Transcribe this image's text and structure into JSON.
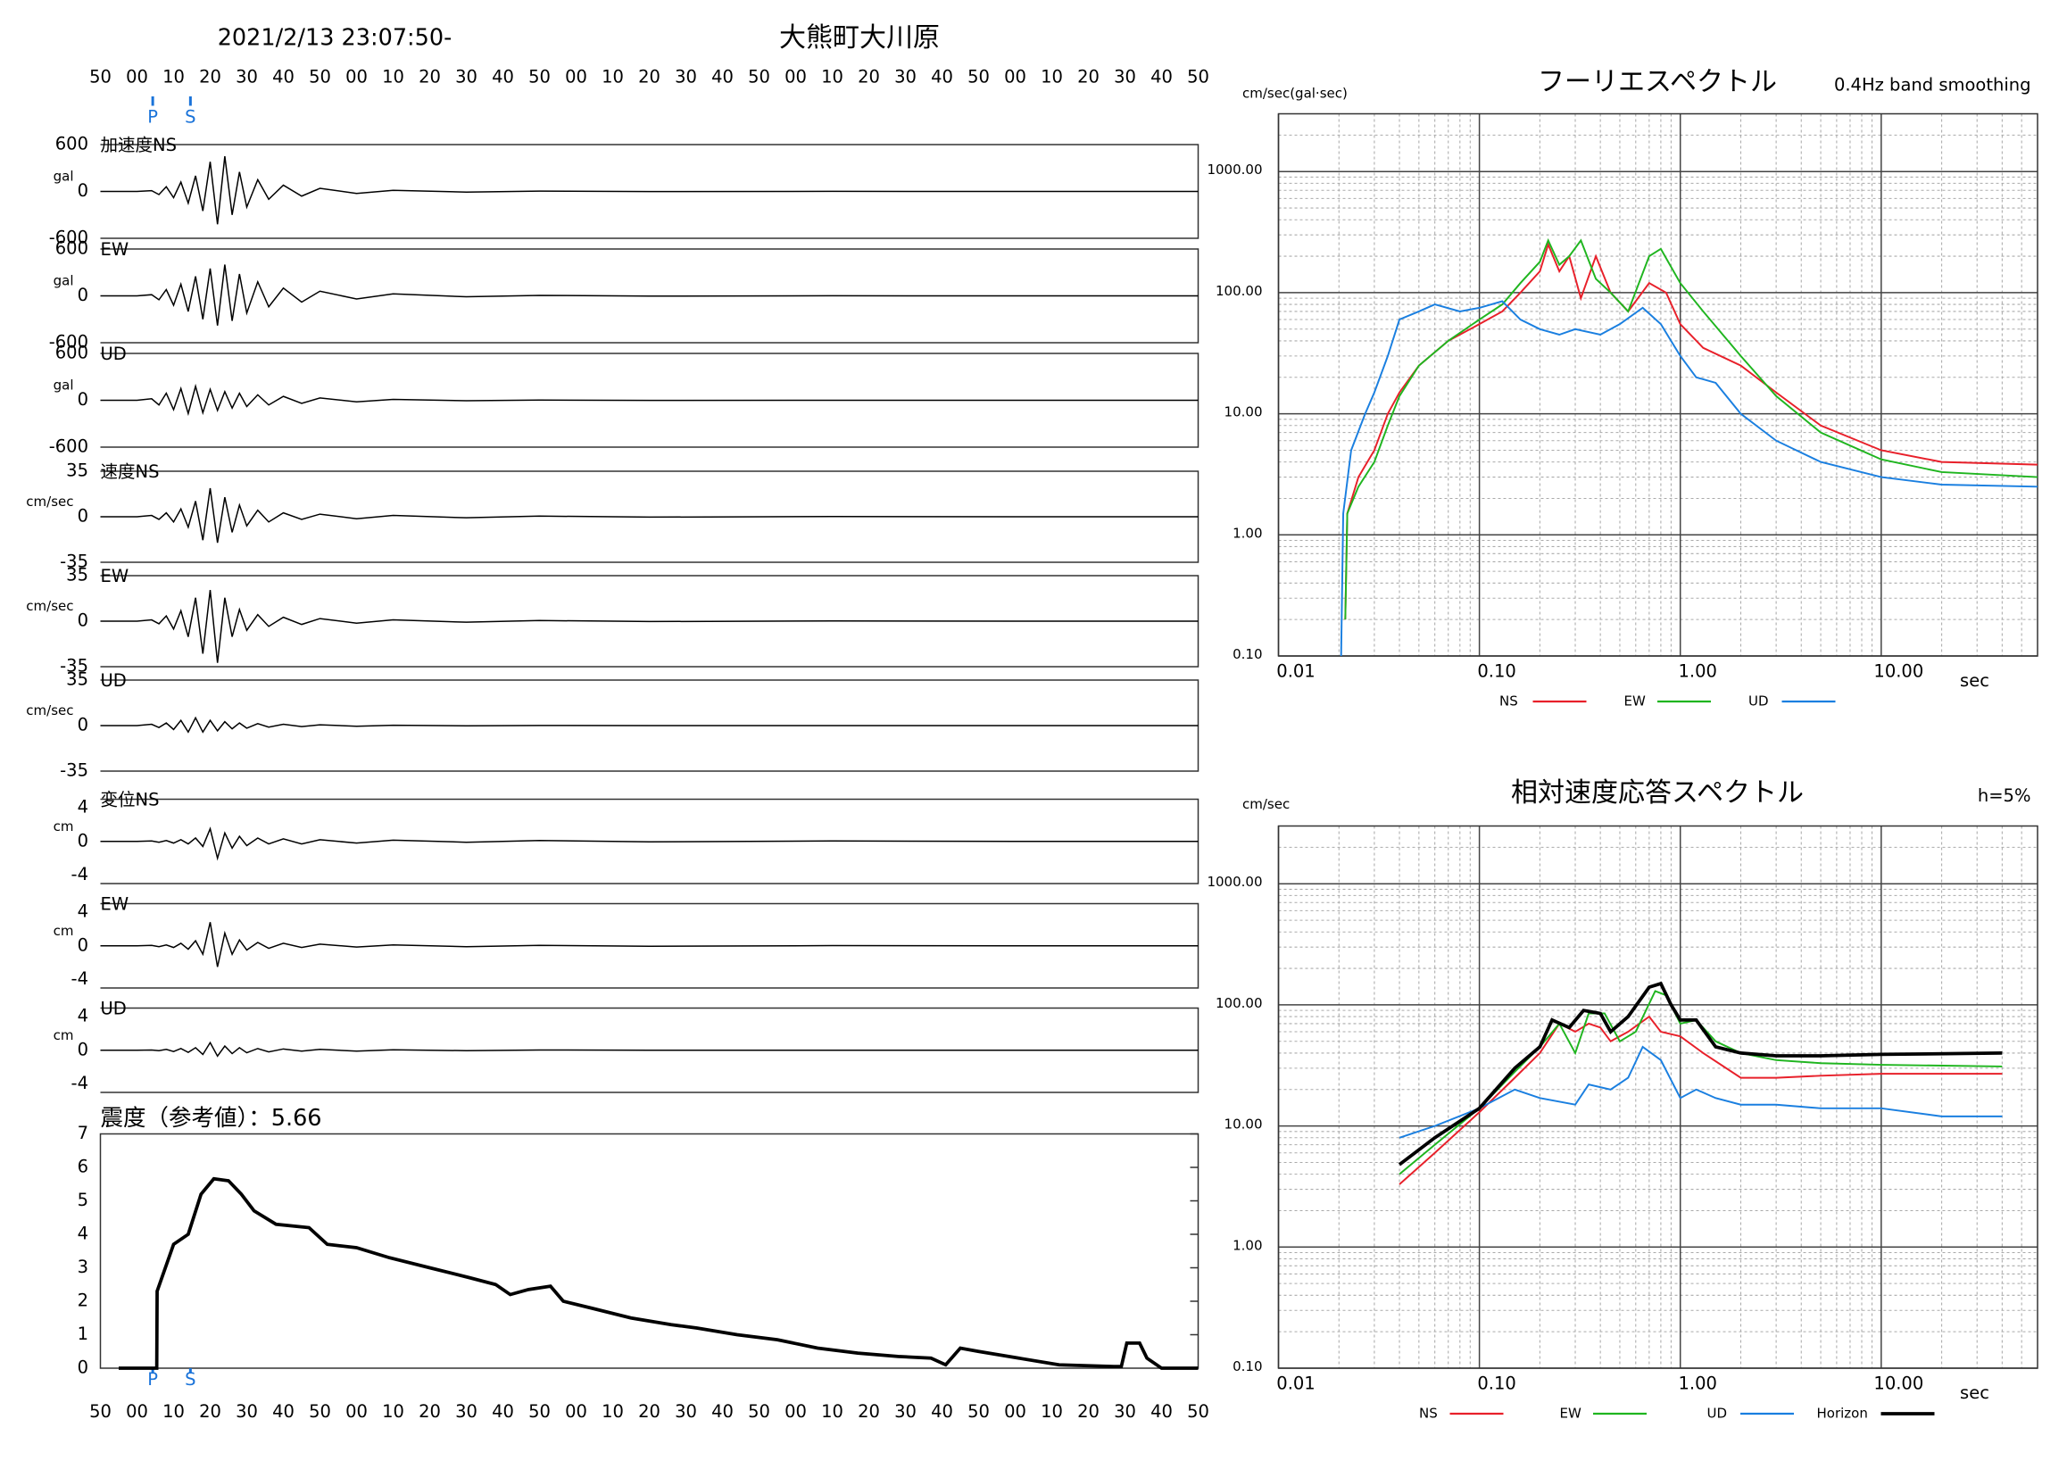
{
  "header": {
    "start_time": "2021/2/13 23:07:50-",
    "station": "大熊町大川原"
  },
  "chart_data": [
    {
      "type": "waveform",
      "x": [
        0,
        10,
        14,
        16,
        18,
        20,
        22,
        24,
        26,
        28,
        30,
        32,
        34,
        36,
        38,
        40,
        43,
        46,
        50,
        55,
        60,
        70,
        80,
        100,
        120,
        150,
        200,
        250,
        300
      ],
      "xlim": [
        0,
        300
      ],
      "xticks": [
        {
          "value": 0,
          "label": "50"
        },
        {
          "value": 10,
          "label": "00"
        },
        {
          "value": 20,
          "label": "10"
        },
        {
          "value": 30,
          "label": "20"
        },
        {
          "value": 40,
          "label": "30"
        },
        {
          "value": 50,
          "label": "40"
        },
        {
          "value": 60,
          "label": "50"
        },
        {
          "value": 70,
          "label": "00"
        },
        {
          "value": 80,
          "label": "10"
        },
        {
          "value": 90,
          "label": "20"
        },
        {
          "value": 100,
          "label": "30"
        },
        {
          "value": 110,
          "label": "40"
        },
        {
          "value": 120,
          "label": "50"
        },
        {
          "value": 130,
          "label": "00"
        },
        {
          "value": 140,
          "label": "10"
        },
        {
          "value": 150,
          "label": "20"
        },
        {
          "value": 160,
          "label": "30"
        },
        {
          "value": 170,
          "label": "40"
        },
        {
          "value": 180,
          "label": "50"
        },
        {
          "value": 190,
          "label": "00"
        },
        {
          "value": 200,
          "label": "10"
        },
        {
          "value": 210,
          "label": "20"
        },
        {
          "value": 220,
          "label": "30"
        },
        {
          "value": 230,
          "label": "40"
        },
        {
          "value": 240,
          "label": "50"
        },
        {
          "value": 250,
          "label": "00"
        },
        {
          "value": 260,
          "label": "10"
        },
        {
          "value": 270,
          "label": "20"
        },
        {
          "value": 280,
          "label": "30"
        },
        {
          "value": 290,
          "label": "40"
        },
        {
          "value": 300,
          "label": "50"
        }
      ],
      "phases": [
        {
          "label": "P",
          "value": 14.3
        },
        {
          "label": "S",
          "value": 24.6
        }
      ],
      "color": "#000000",
      "panels": [
        {
          "label": "加速度NS",
          "unit": "gal",
          "ylim": [
            -600,
            600
          ],
          "yticks": [
            -600,
            0,
            600
          ],
          "values": [
            0,
            0,
            10,
            -40,
            60,
            -80,
            120,
            -150,
            200,
            -250,
            380,
            -420,
            450,
            -300,
            250,
            -200,
            150,
            -100,
            80,
            -60,
            40,
            -25,
            15,
            -8,
            5,
            -2,
            1,
            0,
            0
          ]
        },
        {
          "label": "EW",
          "unit": "gal",
          "ylim": [
            -600,
            600
          ],
          "yticks": [
            -600,
            0,
            600
          ],
          "values": [
            0,
            0,
            15,
            -50,
            80,
            -120,
            150,
            -200,
            250,
            -300,
            350,
            -380,
            400,
            -320,
            280,
            -220,
            180,
            -140,
            100,
            -80,
            60,
            -40,
            25,
            -12,
            6,
            -3,
            1,
            0,
            0
          ]
        },
        {
          "label": "UD",
          "unit": "gal",
          "ylim": [
            -600,
            600
          ],
          "yticks": [
            -600,
            0,
            600
          ],
          "values": [
            0,
            0,
            20,
            -60,
            90,
            -120,
            150,
            -170,
            180,
            -160,
            140,
            -130,
            110,
            -100,
            90,
            -80,
            70,
            -60,
            50,
            -40,
            30,
            -20,
            12,
            -6,
            3,
            -1,
            0,
            0,
            0
          ]
        },
        {
          "label": "速度NS",
          "unit": "cm/sec",
          "ylim": [
            -35,
            35
          ],
          "yticks": [
            -35,
            0,
            35
          ],
          "values": [
            0,
            0,
            1,
            -2,
            3,
            -4,
            6,
            -8,
            12,
            -18,
            22,
            -20,
            15,
            -12,
            9,
            -7,
            5,
            -4,
            3,
            -2,
            2,
            -1.5,
            1,
            -0.8,
            0.5,
            -0.3,
            0.2,
            0,
            0
          ]
        },
        {
          "label": "EW",
          "unit": "cm/sec",
          "ylim": [
            -35,
            35
          ],
          "yticks": [
            -35,
            0,
            35
          ],
          "values": [
            0,
            0,
            1,
            -2,
            4,
            -6,
            8,
            -12,
            18,
            -25,
            24,
            -32,
            18,
            -12,
            9,
            -7,
            5,
            -4,
            3,
            -2.5,
            2,
            -1.5,
            1,
            -0.8,
            0.5,
            -0.3,
            0.2,
            0,
            0
          ]
        },
        {
          "label": "UD",
          "unit": "cm/sec",
          "ylim": [
            -35,
            35
          ],
          "yticks": [
            -35,
            0,
            35
          ],
          "values": [
            0,
            0,
            1,
            -1.5,
            2,
            -3,
            4,
            -5,
            6,
            -5,
            4,
            -4,
            3,
            -2.5,
            2,
            -2,
            1.5,
            -1.2,
            1,
            -0.8,
            0.6,
            -0.5,
            0.3,
            -0.2,
            0.1,
            0,
            0,
            0,
            0
          ]
        },
        {
          "label": "変位NS",
          "unit": "cm",
          "ylim": [
            -5,
            5
          ],
          "yticks": [
            -4,
            0,
            4
          ],
          "values": [
            0,
            0,
            0.05,
            -0.1,
            0.1,
            -0.2,
            0.2,
            -0.3,
            0.4,
            -0.6,
            1.5,
            -2.0,
            1.0,
            -0.8,
            0.6,
            -0.5,
            0.4,
            -0.3,
            0.3,
            -0.3,
            0.2,
            -0.2,
            0.15,
            -0.1,
            0.1,
            -0.05,
            0.05,
            0,
            0
          ]
        },
        {
          "label": "EW",
          "unit": "cm",
          "ylim": [
            -5,
            5
          ],
          "yticks": [
            -4,
            0,
            4
          ],
          "values": [
            0,
            0,
            0.05,
            -0.1,
            0.1,
            -0.2,
            0.3,
            -0.4,
            0.6,
            -1.0,
            2.8,
            -2.5,
            1.5,
            -1.0,
            0.7,
            -0.5,
            0.4,
            -0.3,
            0.3,
            -0.2,
            0.2,
            -0.15,
            0.1,
            -0.1,
            0.05,
            -0.05,
            0.02,
            0,
            0
          ]
        },
        {
          "label": "UD",
          "unit": "cm",
          "ylim": [
            -5,
            5
          ],
          "yticks": [
            -4,
            0,
            4
          ],
          "values": [
            0,
            0,
            0.02,
            -0.05,
            0.1,
            -0.15,
            0.2,
            -0.25,
            0.3,
            -0.5,
            0.9,
            -0.7,
            0.5,
            -0.4,
            0.3,
            -0.3,
            0.2,
            -0.2,
            0.15,
            -0.1,
            0.1,
            -0.1,
            0.05,
            -0.05,
            0.03,
            0,
            0,
            0,
            0
          ]
        }
      ]
    },
    {
      "type": "line",
      "title": "震度（参考値）：5.66",
      "color": "#000000",
      "x": [
        5,
        15.4,
        15.5,
        20,
        24,
        27.5,
        31,
        35,
        38.5,
        42,
        48,
        57,
        62,
        70,
        79,
        90,
        101,
        108,
        112,
        117,
        123,
        126.5,
        134,
        145,
        156,
        163,
        174,
        185,
        196,
        207,
        218,
        227,
        231,
        235,
        240,
        251,
        262,
        277,
        279,
        280.5,
        284,
        286,
        290,
        300
      ],
      "values": [
        0,
        0,
        2.3,
        3.7,
        4,
        5.2,
        5.66,
        5.6,
        5.2,
        4.7,
        4.3,
        4.2,
        3.7,
        3.6,
        3.3,
        3.0,
        2.7,
        2.5,
        2.2,
        2.35,
        2.45,
        2.0,
        1.8,
        1.5,
        1.3,
        1.2,
        1.0,
        0.85,
        0.6,
        0.45,
        0.35,
        0.3,
        0.1,
        0.6,
        0.5,
        0.3,
        0.1,
        0.05,
        0.05,
        0.75,
        0.75,
        0.3,
        0,
        0
      ],
      "xlim": [
        0,
        300
      ],
      "ylim": [
        0,
        7
      ],
      "yticks": [
        0,
        1,
        2,
        3,
        4,
        5,
        6,
        7
      ]
    },
    {
      "type": "log-line",
      "title": "フーリエスペクトル",
      "subtitle": "0.4Hz band smoothing",
      "y_label": "cm/sec(gal·sec)",
      "x_label": "sec",
      "log_x": true,
      "log_y": true,
      "grid": true,
      "xlim": [
        0.01,
        60
      ],
      "ylim": [
        0.1,
        3000
      ],
      "xticks": [
        {
          "value": 0.01,
          "label": "0.01"
        },
        {
          "value": 0.1,
          "label": "0.10"
        },
        {
          "value": 1,
          "label": "1.00"
        },
        {
          "value": 10,
          "label": "10.00"
        }
      ],
      "yticks": [
        {
          "value": 0.1,
          "label": "0.10"
        },
        {
          "value": 1,
          "label": "1.00"
        },
        {
          "value": 10,
          "label": "10.00"
        },
        {
          "value": 100,
          "label": "100.00"
        },
        {
          "value": 1000,
          "label": "1000.00"
        }
      ],
      "series": [
        {
          "name": "NS",
          "color": "#e8202a",
          "x": [
            0.0215,
            0.022,
            0.025,
            0.03,
            0.035,
            0.04,
            0.05,
            0.07,
            0.1,
            0.13,
            0.16,
            0.2,
            0.22,
            0.25,
            0.28,
            0.32,
            0.38,
            0.45,
            0.55,
            0.7,
            0.85,
            1.0,
            1.3,
            2,
            3,
            5,
            10,
            20,
            60
          ],
          "values": [
            0.2,
            1.5,
            3,
            5,
            10,
            15,
            25,
            40,
            55,
            70,
            100,
            150,
            250,
            150,
            200,
            90,
            200,
            100,
            70,
            120,
            100,
            55,
            35,
            25,
            15,
            8,
            5,
            4,
            3.8
          ]
        },
        {
          "name": "EW",
          "color": "#1fb51f",
          "x": [
            0.0215,
            0.022,
            0.025,
            0.03,
            0.035,
            0.04,
            0.05,
            0.07,
            0.1,
            0.13,
            0.16,
            0.2,
            0.22,
            0.25,
            0.28,
            0.32,
            0.38,
            0.45,
            0.55,
            0.7,
            0.8,
            1.0,
            1.3,
            2,
            3,
            5,
            10,
            20,
            60
          ],
          "values": [
            0.2,
            1.5,
            2.5,
            4,
            8,
            14,
            25,
            40,
            60,
            80,
            120,
            180,
            270,
            170,
            200,
            270,
            130,
            100,
            70,
            200,
            230,
            120,
            70,
            30,
            14,
            7,
            4.2,
            3.3,
            3.0
          ]
        },
        {
          "name": "UD",
          "color": "#1a7fe0",
          "x": [
            0.0205,
            0.021,
            0.023,
            0.027,
            0.03,
            0.035,
            0.04,
            0.05,
            0.06,
            0.08,
            0.1,
            0.13,
            0.16,
            0.2,
            0.25,
            0.3,
            0.4,
            0.5,
            0.65,
            0.8,
            1.0,
            1.2,
            1.5,
            2,
            3,
            5,
            10,
            20,
            60
          ],
          "values": [
            0.1,
            1.5,
            5,
            10,
            15,
            30,
            60,
            70,
            80,
            70,
            75,
            85,
            60,
            50,
            45,
            50,
            45,
            55,
            75,
            55,
            30,
            20,
            18,
            10,
            6,
            4,
            3,
            2.6,
            2.5
          ]
        }
      ]
    },
    {
      "type": "log-line",
      "title": "相対速度応答スペクトル",
      "subtitle": "h=5%",
      "y_label": "cm/sec",
      "x_label": "sec",
      "log_x": true,
      "log_y": true,
      "grid": true,
      "xlim": [
        0.01,
        60
      ],
      "ylim": [
        0.1,
        3000
      ],
      "xticks": [
        {
          "value": 0.01,
          "label": "0.01"
        },
        {
          "value": 0.1,
          "label": "0.10"
        },
        {
          "value": 1,
          "label": "1.00"
        },
        {
          "value": 10,
          "label": "10.00"
        }
      ],
      "yticks": [
        {
          "value": 0.1,
          "label": "0.10"
        },
        {
          "value": 1,
          "label": "1.00"
        },
        {
          "value": 10,
          "label": "10.00"
        },
        {
          "value": 100,
          "label": "100.00"
        },
        {
          "value": 1000,
          "label": "1000.00"
        }
      ],
      "series": [
        {
          "name": "NS",
          "color": "#e8202a",
          "x": [
            0.04,
            0.06,
            0.1,
            0.15,
            0.2,
            0.25,
            0.3,
            0.35,
            0.4,
            0.45,
            0.55,
            0.7,
            0.8,
            1.0,
            1.3,
            2,
            3,
            5,
            10,
            40
          ],
          "values": [
            3.3,
            6,
            13,
            25,
            40,
            70,
            60,
            70,
            65,
            50,
            60,
            80,
            60,
            55,
            40,
            25,
            25,
            26,
            27,
            27
          ]
        },
        {
          "name": "EW",
          "color": "#1fb51f",
          "x": [
            0.04,
            0.06,
            0.1,
            0.15,
            0.2,
            0.25,
            0.3,
            0.35,
            0.42,
            0.5,
            0.6,
            0.75,
            0.85,
            1.0,
            1.2,
            1.5,
            2,
            3,
            5,
            10,
            40
          ],
          "values": [
            4,
            7,
            14,
            28,
            45,
            70,
            40,
            85,
            85,
            50,
            60,
            130,
            120,
            70,
            75,
            50,
            40,
            35,
            33,
            32,
            31
          ]
        },
        {
          "name": "UD",
          "color": "#1a7fe0",
          "x": [
            0.04,
            0.06,
            0.1,
            0.15,
            0.2,
            0.3,
            0.35,
            0.45,
            0.55,
            0.65,
            0.8,
            1.0,
            1.2,
            1.5,
            2,
            3,
            5,
            10,
            20,
            40
          ],
          "values": [
            8,
            10,
            14,
            20,
            17,
            15,
            22,
            20,
            25,
            45,
            35,
            17,
            20,
            17,
            15,
            15,
            14,
            14,
            12,
            12
          ]
        },
        {
          "name": "Horizon",
          "color": "#000000",
          "x": [
            0.04,
            0.06,
            0.1,
            0.15,
            0.2,
            0.23,
            0.28,
            0.33,
            0.4,
            0.45,
            0.55,
            0.7,
            0.8,
            0.9,
            1.0,
            1.2,
            1.5,
            2,
            3,
            5,
            10,
            40
          ],
          "values": [
            4.8,
            8,
            14,
            30,
            45,
            75,
            65,
            90,
            85,
            60,
            80,
            140,
            150,
            100,
            75,
            75,
            45,
            40,
            38,
            38,
            39,
            40
          ]
        }
      ]
    }
  ]
}
